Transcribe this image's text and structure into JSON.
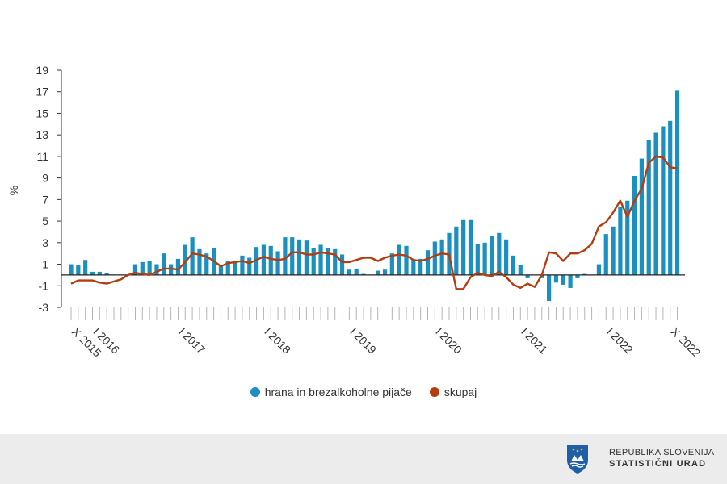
{
  "chart_data": {
    "type": "bar+line",
    "title": "",
    "ylabel": "%",
    "xlabel": "",
    "ylim": [
      -3,
      19
    ],
    "yticks": [
      19,
      17,
      15,
      13,
      11,
      9,
      7,
      5,
      3,
      1,
      -1,
      -3
    ],
    "x_labels": [
      {
        "index": 0,
        "label": "X 2015"
      },
      {
        "index": 3,
        "label": "I 2016"
      },
      {
        "index": 15,
        "label": "I 2017"
      },
      {
        "index": 27,
        "label": "I 2018"
      },
      {
        "index": 39,
        "label": "I 2019"
      },
      {
        "index": 51,
        "label": "I 2020"
      },
      {
        "index": 63,
        "label": "I 2021"
      },
      {
        "index": 75,
        "label": "I 2022"
      },
      {
        "index": 84,
        "label": "X 2022"
      }
    ],
    "series": [
      {
        "name": "hrana in brezalkoholne pijače",
        "type": "bar",
        "color": "#1a8fc0",
        "values": [
          1.0,
          0.9,
          1.4,
          0.3,
          0.3,
          0.2,
          0.0,
          0.0,
          0.0,
          1.0,
          1.2,
          1.3,
          1.0,
          2.0,
          1.0,
          1.5,
          2.8,
          3.5,
          2.4,
          2.0,
          2.5,
          0.8,
          1.3,
          1.2,
          1.8,
          1.6,
          2.6,
          2.8,
          2.7,
          2.2,
          3.5,
          3.5,
          3.3,
          3.2,
          2.5,
          2.8,
          2.5,
          2.4,
          1.9,
          0.5,
          0.6,
          0.1,
          0.0,
          0.4,
          0.5,
          2.0,
          2.8,
          2.7,
          1.4,
          1.5,
          2.3,
          3.1,
          3.3,
          3.9,
          4.5,
          5.1,
          5.1,
          2.9,
          3.0,
          3.6,
          3.9,
          3.3,
          1.8,
          0.9,
          -0.3,
          0.0,
          -0.3,
          -2.4,
          -0.7,
          -0.9,
          -1.2,
          -0.3,
          0.1,
          0.0,
          1.0,
          3.8,
          4.5,
          6.3,
          6.9,
          9.2,
          10.8,
          12.5,
          13.2,
          13.8,
          14.3,
          17.1
        ]
      },
      {
        "name": "skupaj",
        "type": "line",
        "color": "#b33d0e",
        "values": [
          -0.8,
          -0.5,
          -0.5,
          -0.5,
          -0.7,
          -0.8,
          -0.6,
          -0.4,
          0.0,
          0.2,
          0.1,
          0.0,
          0.3,
          0.6,
          0.6,
          0.5,
          1.2,
          2.0,
          1.9,
          1.7,
          1.3,
          0.8,
          1.1,
          1.2,
          1.3,
          1.1,
          1.4,
          1.7,
          1.5,
          1.4,
          1.5,
          2.1,
          2.1,
          1.9,
          1.9,
          2.1,
          2.0,
          1.9,
          1.2,
          1.2,
          1.4,
          1.6,
          1.6,
          1.3,
          1.6,
          1.8,
          1.9,
          1.8,
          1.4,
          1.3,
          1.5,
          1.8,
          2.0,
          1.9,
          -1.3,
          -1.3,
          -0.2,
          0.2,
          0.0,
          -0.1,
          0.3,
          -0.2,
          -0.9,
          -1.2,
          -0.8,
          -1.1,
          0.0,
          2.1,
          2.0,
          1.3,
          2.0,
          2.0,
          2.3,
          2.9,
          4.5,
          4.9,
          5.8,
          6.9,
          5.4,
          6.9,
          8.0,
          10.4,
          11.0,
          10.9,
          10.0,
          9.9
        ]
      }
    ]
  },
  "legend": {
    "food_label": "hrana in brezalkoholne pijače",
    "total_label": "skupaj"
  },
  "footer": {
    "org_line1": "REPUBLIKA SLOVENIJA",
    "org_line2": "STATISTIČNI URAD"
  }
}
